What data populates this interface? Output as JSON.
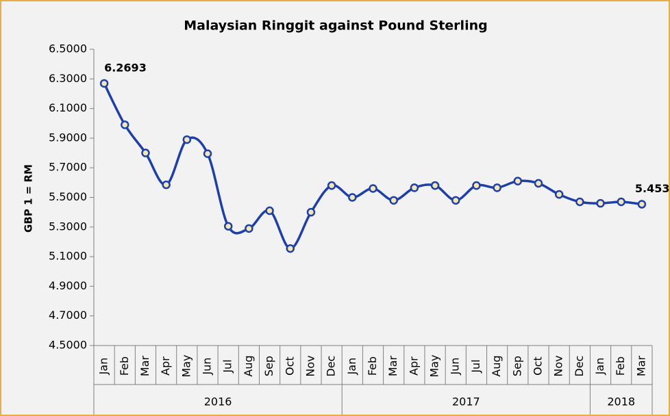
{
  "chart_data": {
    "type": "line",
    "title": "Malaysian Ringgit against Pound Sterling",
    "y_label": "GBP 1 = RM",
    "category_groups": [
      {
        "label": "2016",
        "categories": [
          "Jan",
          "Feb",
          "Mar",
          "Apr",
          "May",
          "Jun",
          "Jul",
          "Aug",
          "Sep",
          "Oct",
          "Nov",
          "Dec"
        ]
      },
      {
        "label": "2017",
        "categories": [
          "Jan",
          "Feb",
          "Mar",
          "Apr",
          "May",
          "Jun",
          "Jul",
          "Aug",
          "Sep",
          "Oct",
          "Nov",
          "Dec"
        ]
      },
      {
        "label": "2018",
        "categories": [
          "Jan",
          "Feb",
          "Mar"
        ]
      }
    ],
    "values": [
      6.2693,
      5.99,
      5.8,
      5.585,
      5.89,
      5.795,
      5.305,
      5.29,
      5.41,
      5.155,
      5.4,
      5.58,
      5.5,
      5.56,
      5.48,
      5.565,
      5.58,
      5.48,
      5.58,
      5.565,
      5.61,
      5.595,
      5.52,
      5.47,
      5.46,
      5.47,
      5.4537
    ],
    "color": "#1f3fa8",
    "marker_fill": "#f3e6b3",
    "ylim": [
      4.5,
      6.5
    ],
    "yticks": [
      {
        "value": 4.5,
        "label": "4.5000"
      },
      {
        "value": 4.7,
        "label": "4.7000"
      },
      {
        "value": 4.9,
        "label": "4.9000"
      },
      {
        "value": 5.1,
        "label": "5.1000"
      },
      {
        "value": 5.3,
        "label": "5.3000"
      },
      {
        "value": 5.5,
        "label": "5.5000"
      },
      {
        "value": 5.7,
        "label": "5.7000"
      },
      {
        "value": 5.9,
        "label": "5.9000"
      },
      {
        "value": 6.1,
        "label": "6.1000"
      },
      {
        "value": 6.3,
        "label": "6.3000"
      },
      {
        "value": 6.5,
        "label": "6.5000"
      }
    ]
  }
}
